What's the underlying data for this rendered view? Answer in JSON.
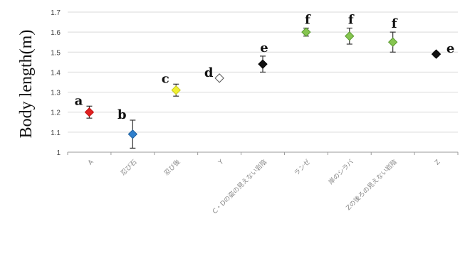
{
  "chart_data": {
    "type": "scatter",
    "ylabel": "Body length(m)",
    "xlabel": "",
    "title": "",
    "ylim": [
      1.0,
      1.7
    ],
    "yticks": [
      "1",
      "1.1",
      "1.2",
      "1.3",
      "1.4",
      "1.5",
      "1.6",
      "1.7"
    ],
    "grid": "horizontal",
    "categories": [
      "A",
      "忍び石",
      "忍び後",
      "Y",
      "C・Dの姿の見えない岩陰",
      "ランゼ",
      "岸のシラバ",
      "Zの後ろの見えない岩陰",
      "Z"
    ],
    "values": [
      1.2,
      1.09,
      1.31,
      1.37,
      1.44,
      1.6,
      1.58,
      1.55,
      1.49
    ],
    "error": [
      0.03,
      0.07,
      0.03,
      0.0,
      0.04,
      0.02,
      0.04,
      0.05,
      0.01
    ],
    "significance": [
      "a",
      "b",
      "c",
      "d",
      "e",
      "f",
      "f",
      "f",
      "e"
    ],
    "marker_fill": [
      "#e02020",
      "#2f7fcc",
      "#f0f030",
      "#ffffff",
      "#111111",
      "#86c550",
      "#86c550",
      "#86c550",
      "#111111"
    ],
    "marker_stroke": [
      "#c01010",
      "#1f5f9c",
      "#c8c820",
      "#555555",
      "#000000",
      "#5a9a30",
      "#5a9a30",
      "#5a9a30",
      "#000000"
    ]
  }
}
